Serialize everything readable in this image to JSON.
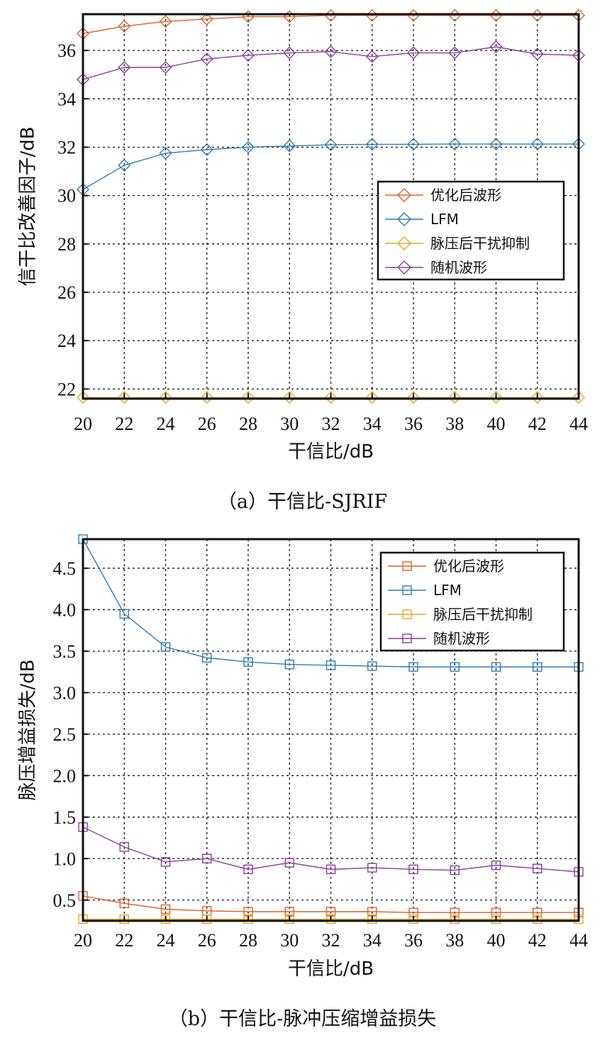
{
  "chart_data": [
    {
      "type": "line",
      "caption": "（a）干信比-SJRIF",
      "xlabel": "干信比/dB",
      "ylabel": "信干比改善因子/dB",
      "xlim": [
        20,
        44
      ],
      "ylim": [
        21.6,
        37.5
      ],
      "xticks": [
        "20",
        "22",
        "24",
        "26",
        "28",
        "30",
        "32",
        "34",
        "36",
        "38",
        "40",
        "42",
        "44"
      ],
      "yticks": [
        22,
        24,
        26,
        28,
        30,
        32,
        34,
        36
      ],
      "ytick_labels": [
        "22",
        "24",
        "26",
        "28",
        "30",
        "32",
        "34",
        "36"
      ],
      "grid": true,
      "marker": "diamond",
      "legend_position": "right-middle",
      "x": [
        20,
        22,
        24,
        26,
        28,
        30,
        32,
        34,
        36,
        38,
        40,
        42,
        44
      ],
      "series": [
        {
          "name": "优化后波形",
          "color": "#D9622B",
          "values": [
            36.7,
            37.0,
            37.2,
            37.3,
            37.4,
            37.4,
            37.45,
            37.45,
            37.45,
            37.45,
            37.45,
            37.45,
            37.45
          ]
        },
        {
          "name": "LFM",
          "color": "#2E7DB5",
          "values": [
            30.25,
            31.25,
            31.75,
            31.9,
            32.0,
            32.05,
            32.1,
            32.12,
            32.12,
            32.13,
            32.13,
            32.13,
            32.13
          ]
        },
        {
          "name": "脉压后干扰抑制",
          "color": "#E3A72F",
          "values": [
            21.65,
            21.65,
            21.65,
            21.65,
            21.65,
            21.65,
            21.65,
            21.65,
            21.65,
            21.65,
            21.65,
            21.65,
            21.65
          ]
        },
        {
          "name": "随机波形",
          "color": "#8B3D9C",
          "values": [
            34.8,
            35.3,
            35.3,
            35.65,
            35.8,
            35.9,
            35.95,
            35.75,
            35.9,
            35.9,
            36.15,
            35.85,
            35.8
          ]
        }
      ]
    },
    {
      "type": "line",
      "caption": "（b）干信比-脉冲压缩增益损失",
      "xlabel": "干信比/dB",
      "ylabel": "脉压增益损失/dB",
      "xlim": [
        20,
        44
      ],
      "ylim": [
        0.25,
        4.85
      ],
      "xticks": [
        "20",
        "22",
        "24",
        "26",
        "28",
        "30",
        "32",
        "34",
        "36",
        "38",
        "40",
        "42",
        "44"
      ],
      "yticks": [
        0.5,
        1.0,
        1.5,
        2.0,
        2.5,
        3.0,
        3.5,
        4.0,
        4.5
      ],
      "ytick_labels": [
        "0.5",
        "1.0",
        "1.5",
        "2.0",
        "2.5",
        "3.0",
        "3.5",
        "4.0",
        "4.5"
      ],
      "grid": true,
      "marker": "square",
      "legend_position": "top-right",
      "x": [
        20,
        22,
        24,
        26,
        28,
        30,
        32,
        34,
        36,
        38,
        40,
        42,
        44
      ],
      "series": [
        {
          "name": "优化后波形",
          "color": "#D9622B",
          "values": [
            0.55,
            0.46,
            0.39,
            0.37,
            0.36,
            0.36,
            0.36,
            0.36,
            0.35,
            0.35,
            0.35,
            0.35,
            0.35
          ]
        },
        {
          "name": "LFM",
          "color": "#2E7DB5",
          "values": [
            4.85,
            3.95,
            3.55,
            3.42,
            3.37,
            3.34,
            3.33,
            3.32,
            3.31,
            3.31,
            3.31,
            3.31,
            3.31
          ]
        },
        {
          "name": "脉压后干扰抑制",
          "color": "#E3A72F",
          "values": [
            0.27,
            0.27,
            0.27,
            0.27,
            0.27,
            0.27,
            0.27,
            0.27,
            0.27,
            0.27,
            0.27,
            0.27,
            0.27
          ]
        },
        {
          "name": "随机波形",
          "color": "#8B3D9C",
          "values": [
            1.38,
            1.14,
            0.96,
            1.0,
            0.87,
            0.95,
            0.87,
            0.89,
            0.87,
            0.86,
            0.92,
            0.88,
            0.84
          ]
        }
      ]
    }
  ]
}
